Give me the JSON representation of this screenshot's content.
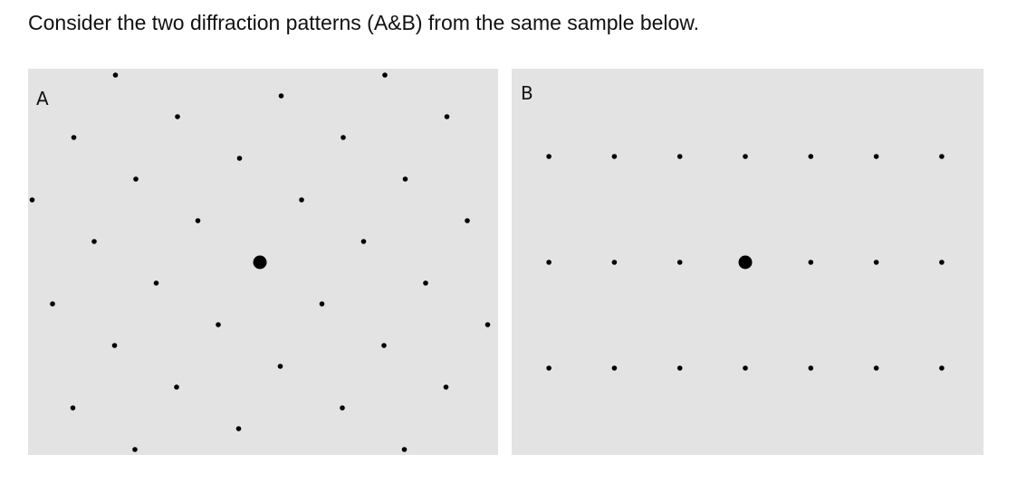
{
  "question": {
    "text": "Consider the two diffraction patterns (A&B) from the same sample below."
  },
  "panels": [
    {
      "label": "A"
    },
    {
      "label": "B"
    }
  ]
}
